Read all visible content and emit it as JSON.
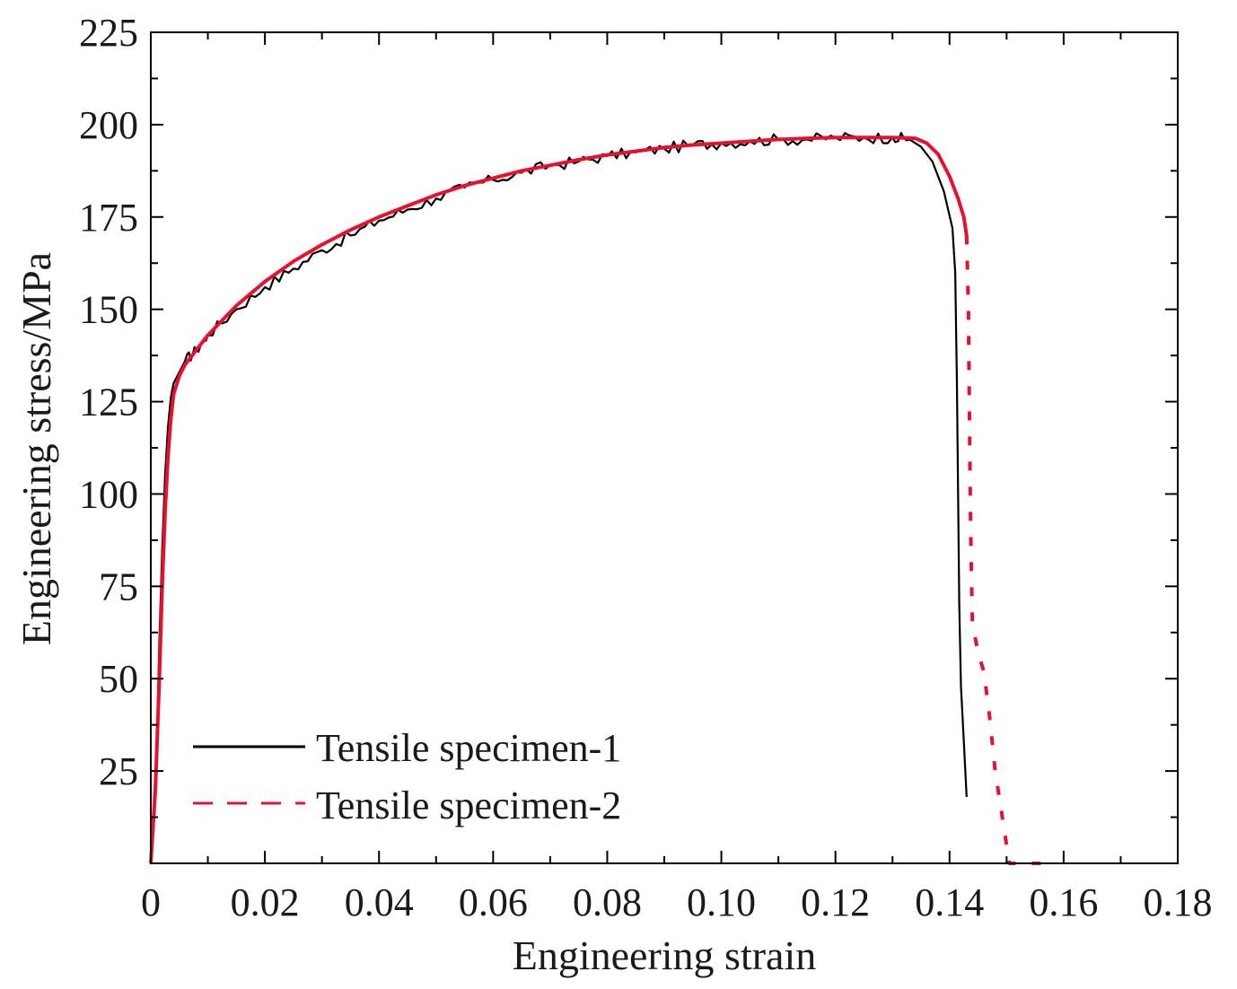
{
  "chart_data": {
    "type": "line",
    "xlabel": "Engineering strain",
    "ylabel": "Engineering stress/MPa",
    "xlim": [
      0,
      0.18
    ],
    "ylim": [
      0,
      225
    ],
    "x_ticks": [
      "0",
      "0.02",
      "0.04",
      "0.06",
      "0.08",
      "0.10",
      "0.12",
      "0.14",
      "0.16",
      "0.18"
    ],
    "y_ticks": [
      "25",
      "50",
      "75",
      "100",
      "125",
      "150",
      "175",
      "200",
      "225"
    ],
    "legend_position": "bottom-left",
    "series": [
      {
        "name": "Tensile specimen-1",
        "color": "#000000",
        "style": "solid",
        "points": [
          [
            0.0,
            0
          ],
          [
            0.001,
            30
          ],
          [
            0.0015,
            60
          ],
          [
            0.002,
            85
          ],
          [
            0.0025,
            105
          ],
          [
            0.003,
            118
          ],
          [
            0.0035,
            126
          ],
          [
            0.004,
            130
          ],
          [
            0.005,
            133
          ],
          [
            0.006,
            136
          ],
          [
            0.008,
            139
          ],
          [
            0.01,
            143
          ],
          [
            0.015,
            150
          ],
          [
            0.02,
            156
          ],
          [
            0.025,
            161
          ],
          [
            0.03,
            166
          ],
          [
            0.035,
            170
          ],
          [
            0.04,
            174
          ],
          [
            0.045,
            177
          ],
          [
            0.05,
            180
          ],
          [
            0.055,
            183
          ],
          [
            0.06,
            185
          ],
          [
            0.065,
            187
          ],
          [
            0.07,
            189
          ],
          [
            0.075,
            190
          ],
          [
            0.08,
            191.5
          ],
          [
            0.085,
            192.5
          ],
          [
            0.09,
            193.5
          ],
          [
            0.095,
            194.5
          ],
          [
            0.1,
            195
          ],
          [
            0.105,
            195.5
          ],
          [
            0.11,
            196
          ],
          [
            0.115,
            196
          ],
          [
            0.12,
            196.5
          ],
          [
            0.125,
            196.5
          ],
          [
            0.13,
            196.5
          ],
          [
            0.133,
            196
          ],
          [
            0.135,
            194
          ],
          [
            0.137,
            190
          ],
          [
            0.139,
            182
          ],
          [
            0.1405,
            172
          ],
          [
            0.141,
            160
          ],
          [
            0.1413,
            130
          ],
          [
            0.1415,
            100
          ],
          [
            0.1417,
            70
          ],
          [
            0.142,
            48
          ],
          [
            0.1425,
            33
          ],
          [
            0.143,
            18
          ]
        ]
      },
      {
        "name": "Tensile specimen-2",
        "color": "#e8112d",
        "style": "dashed",
        "points": [
          [
            0.0,
            0
          ],
          [
            0.0008,
            20
          ],
          [
            0.0015,
            50
          ],
          [
            0.002,
            75
          ],
          [
            0.0025,
            95
          ],
          [
            0.003,
            110
          ],
          [
            0.0035,
            120
          ],
          [
            0.004,
            127
          ],
          [
            0.005,
            132
          ],
          [
            0.006,
            135
          ],
          [
            0.008,
            139
          ],
          [
            0.01,
            143
          ],
          [
            0.015,
            151
          ],
          [
            0.02,
            157.5
          ],
          [
            0.025,
            163
          ],
          [
            0.03,
            167.5
          ],
          [
            0.035,
            171.5
          ],
          [
            0.04,
            175
          ],
          [
            0.045,
            178
          ],
          [
            0.05,
            181
          ],
          [
            0.055,
            183.5
          ],
          [
            0.06,
            185.5
          ],
          [
            0.065,
            187.5
          ],
          [
            0.07,
            189
          ],
          [
            0.075,
            190.5
          ],
          [
            0.08,
            191.8
          ],
          [
            0.085,
            192.8
          ],
          [
            0.09,
            193.8
          ],
          [
            0.095,
            194.5
          ],
          [
            0.1,
            195
          ],
          [
            0.105,
            195.5
          ],
          [
            0.11,
            196
          ],
          [
            0.115,
            196.3
          ],
          [
            0.12,
            196.5
          ],
          [
            0.125,
            196.5
          ],
          [
            0.13,
            196.5
          ],
          [
            0.134,
            196.3
          ],
          [
            0.136,
            195
          ],
          [
            0.138,
            192
          ],
          [
            0.14,
            186
          ],
          [
            0.1415,
            180
          ],
          [
            0.1425,
            175
          ],
          [
            0.143,
            170
          ],
          [
            0.1433,
            150
          ],
          [
            0.1435,
            120
          ],
          [
            0.1437,
            90
          ],
          [
            0.144,
            65
          ],
          [
            0.145,
            57
          ],
          [
            0.146,
            52
          ],
          [
            0.147,
            40
          ],
          [
            0.148,
            25
          ],
          [
            0.149,
            15
          ],
          [
            0.15,
            5
          ],
          [
            0.1505,
            0
          ],
          [
            0.152,
            0
          ],
          [
            0.154,
            0
          ],
          [
            0.156,
            0
          ]
        ]
      }
    ]
  }
}
